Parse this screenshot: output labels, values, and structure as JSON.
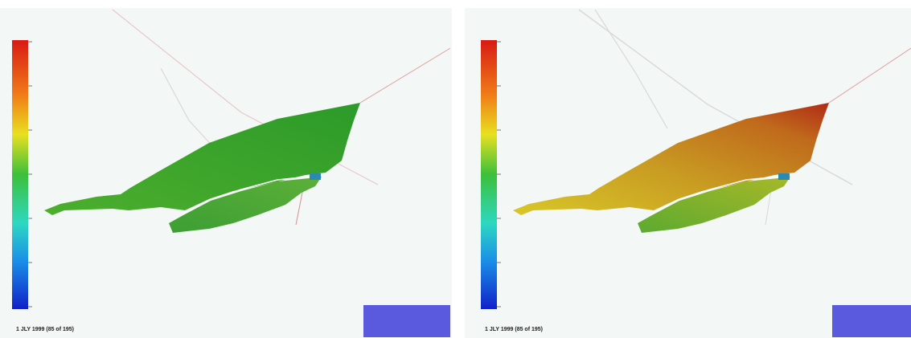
{
  "panels": [
    {
      "date_label": "1 JLY 1999 (85 of 195)"
    },
    {
      "date_label": "1 JLY 1999 (85 of 195)"
    }
  ]
}
